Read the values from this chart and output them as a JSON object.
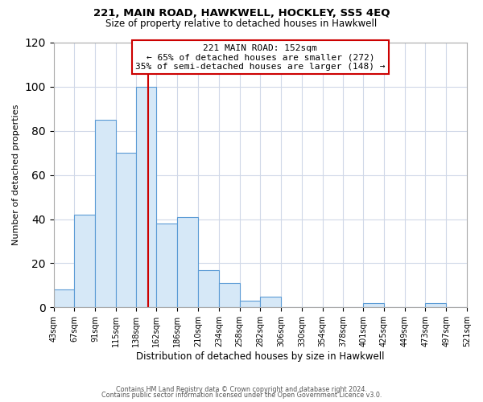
{
  "title": "221, MAIN ROAD, HAWKWELL, HOCKLEY, SS5 4EQ",
  "subtitle": "Size of property relative to detached houses in Hawkwell",
  "xlabel": "Distribution of detached houses by size in Hawkwell",
  "ylabel": "Number of detached properties",
  "bin_edges": [
    43,
    67,
    91,
    115,
    138,
    162,
    186,
    210,
    234,
    258,
    282,
    306,
    330,
    354,
    378,
    401,
    425,
    449,
    473,
    497,
    521
  ],
  "bin_counts": [
    8,
    42,
    85,
    70,
    100,
    38,
    41,
    17,
    11,
    3,
    5,
    0,
    0,
    0,
    0,
    2,
    0,
    0,
    2,
    0
  ],
  "bar_facecolor": "#d6e8f7",
  "bar_edgecolor": "#5b9bd5",
  "property_line_x": 152,
  "property_line_color": "#cc0000",
  "annotation_box_edgecolor": "#cc0000",
  "annotation_lines": [
    "221 MAIN ROAD: 152sqm",
    "← 65% of detached houses are smaller (272)",
    "35% of semi-detached houses are larger (148) →"
  ],
  "ylim": [
    0,
    120
  ],
  "yticks": [
    0,
    20,
    40,
    60,
    80,
    100,
    120
  ],
  "tick_labels": [
    "43sqm",
    "67sqm",
    "91sqm",
    "115sqm",
    "138sqm",
    "162sqm",
    "186sqm",
    "210sqm",
    "234sqm",
    "258sqm",
    "282sqm",
    "306sqm",
    "330sqm",
    "354sqm",
    "378sqm",
    "401sqm",
    "425sqm",
    "449sqm",
    "473sqm",
    "497sqm",
    "521sqm"
  ],
  "footer1": "Contains HM Land Registry data © Crown copyright and database right 2024.",
  "footer2": "Contains public sector information licensed under the Open Government Licence v3.0.",
  "background_color": "#ffffff",
  "grid_color": "#d0d8e8"
}
